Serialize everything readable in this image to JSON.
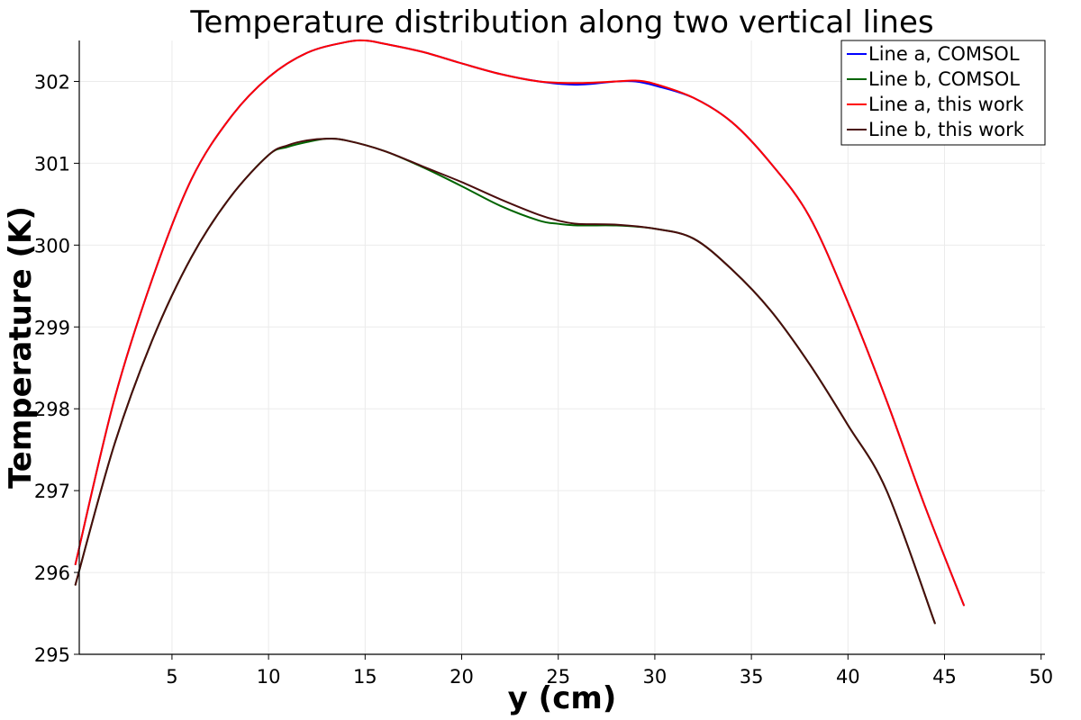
{
  "chart_data": {
    "type": "line",
    "title": "Temperature distribution along two vertical lines",
    "xlabel": "y (cm)",
    "ylabel": "Temperature (K)",
    "xlim": [
      0.2,
      50.2
    ],
    "ylim": [
      295,
      302.5
    ],
    "x_ticks": [
      5,
      10,
      15,
      20,
      25,
      30,
      35,
      40,
      45,
      50
    ],
    "y_ticks": [
      295,
      296,
      297,
      298,
      299,
      300,
      301,
      302
    ],
    "grid": true,
    "legend_position": "top-right",
    "series": [
      {
        "name": "Line a, COMSOL",
        "color": "#0000ff",
        "x": [
          0,
          2,
          4,
          6,
          8,
          10,
          12,
          14,
          15,
          16,
          18,
          20,
          22,
          24,
          26,
          28,
          29,
          30,
          32,
          34,
          36,
          38,
          40,
          42,
          44,
          46
        ],
        "y": [
          296.1,
          298.1,
          299.6,
          300.8,
          301.55,
          302.05,
          302.35,
          302.48,
          302.5,
          302.46,
          302.36,
          302.22,
          302.09,
          302.0,
          301.96,
          302.0,
          302.0,
          301.95,
          301.8,
          301.5,
          301.0,
          300.35,
          299.3,
          298.1,
          296.8,
          295.6
        ]
      },
      {
        "name": "Line b, COMSOL",
        "color": "#006400",
        "x": [
          0,
          2,
          4,
          6,
          8,
          10,
          11,
          12,
          13,
          14,
          16,
          18,
          20,
          22,
          24,
          25,
          26,
          28,
          30,
          32,
          34,
          36,
          38,
          40,
          42,
          44.5
        ],
        "y": [
          295.85,
          297.55,
          298.85,
          299.85,
          300.58,
          301.1,
          301.2,
          301.26,
          301.3,
          301.28,
          301.15,
          300.95,
          300.72,
          300.48,
          300.3,
          300.26,
          300.24,
          300.24,
          300.2,
          300.08,
          299.7,
          299.2,
          298.55,
          297.8,
          297.0,
          295.38
        ]
      },
      {
        "name": "Line a, this work",
        "color": "#ff0000",
        "x": [
          0,
          2,
          4,
          6,
          8,
          10,
          12,
          14,
          15,
          16,
          18,
          20,
          22,
          24,
          26,
          28,
          29,
          30,
          32,
          34,
          36,
          38,
          40,
          42,
          44,
          46
        ],
        "y": [
          296.1,
          298.1,
          299.6,
          300.8,
          301.55,
          302.05,
          302.35,
          302.48,
          302.5,
          302.46,
          302.36,
          302.22,
          302.09,
          302.0,
          301.98,
          302.0,
          302.01,
          301.97,
          301.8,
          301.5,
          301.0,
          300.35,
          299.3,
          298.1,
          296.8,
          295.6
        ]
      },
      {
        "name": "Line b, this work",
        "color": "#4a0d0d",
        "x": [
          0,
          2,
          4,
          6,
          8,
          10,
          11,
          12,
          13,
          14,
          16,
          18,
          20,
          22,
          24,
          25,
          26,
          28,
          30,
          32,
          34,
          36,
          38,
          40,
          42,
          44.5
        ],
        "y": [
          295.85,
          297.55,
          298.85,
          299.85,
          300.58,
          301.1,
          301.22,
          301.28,
          301.3,
          301.28,
          301.15,
          300.96,
          300.77,
          300.56,
          300.37,
          300.3,
          300.26,
          300.25,
          300.2,
          300.08,
          299.7,
          299.2,
          298.55,
          297.8,
          297.0,
          295.38
        ]
      }
    ]
  }
}
